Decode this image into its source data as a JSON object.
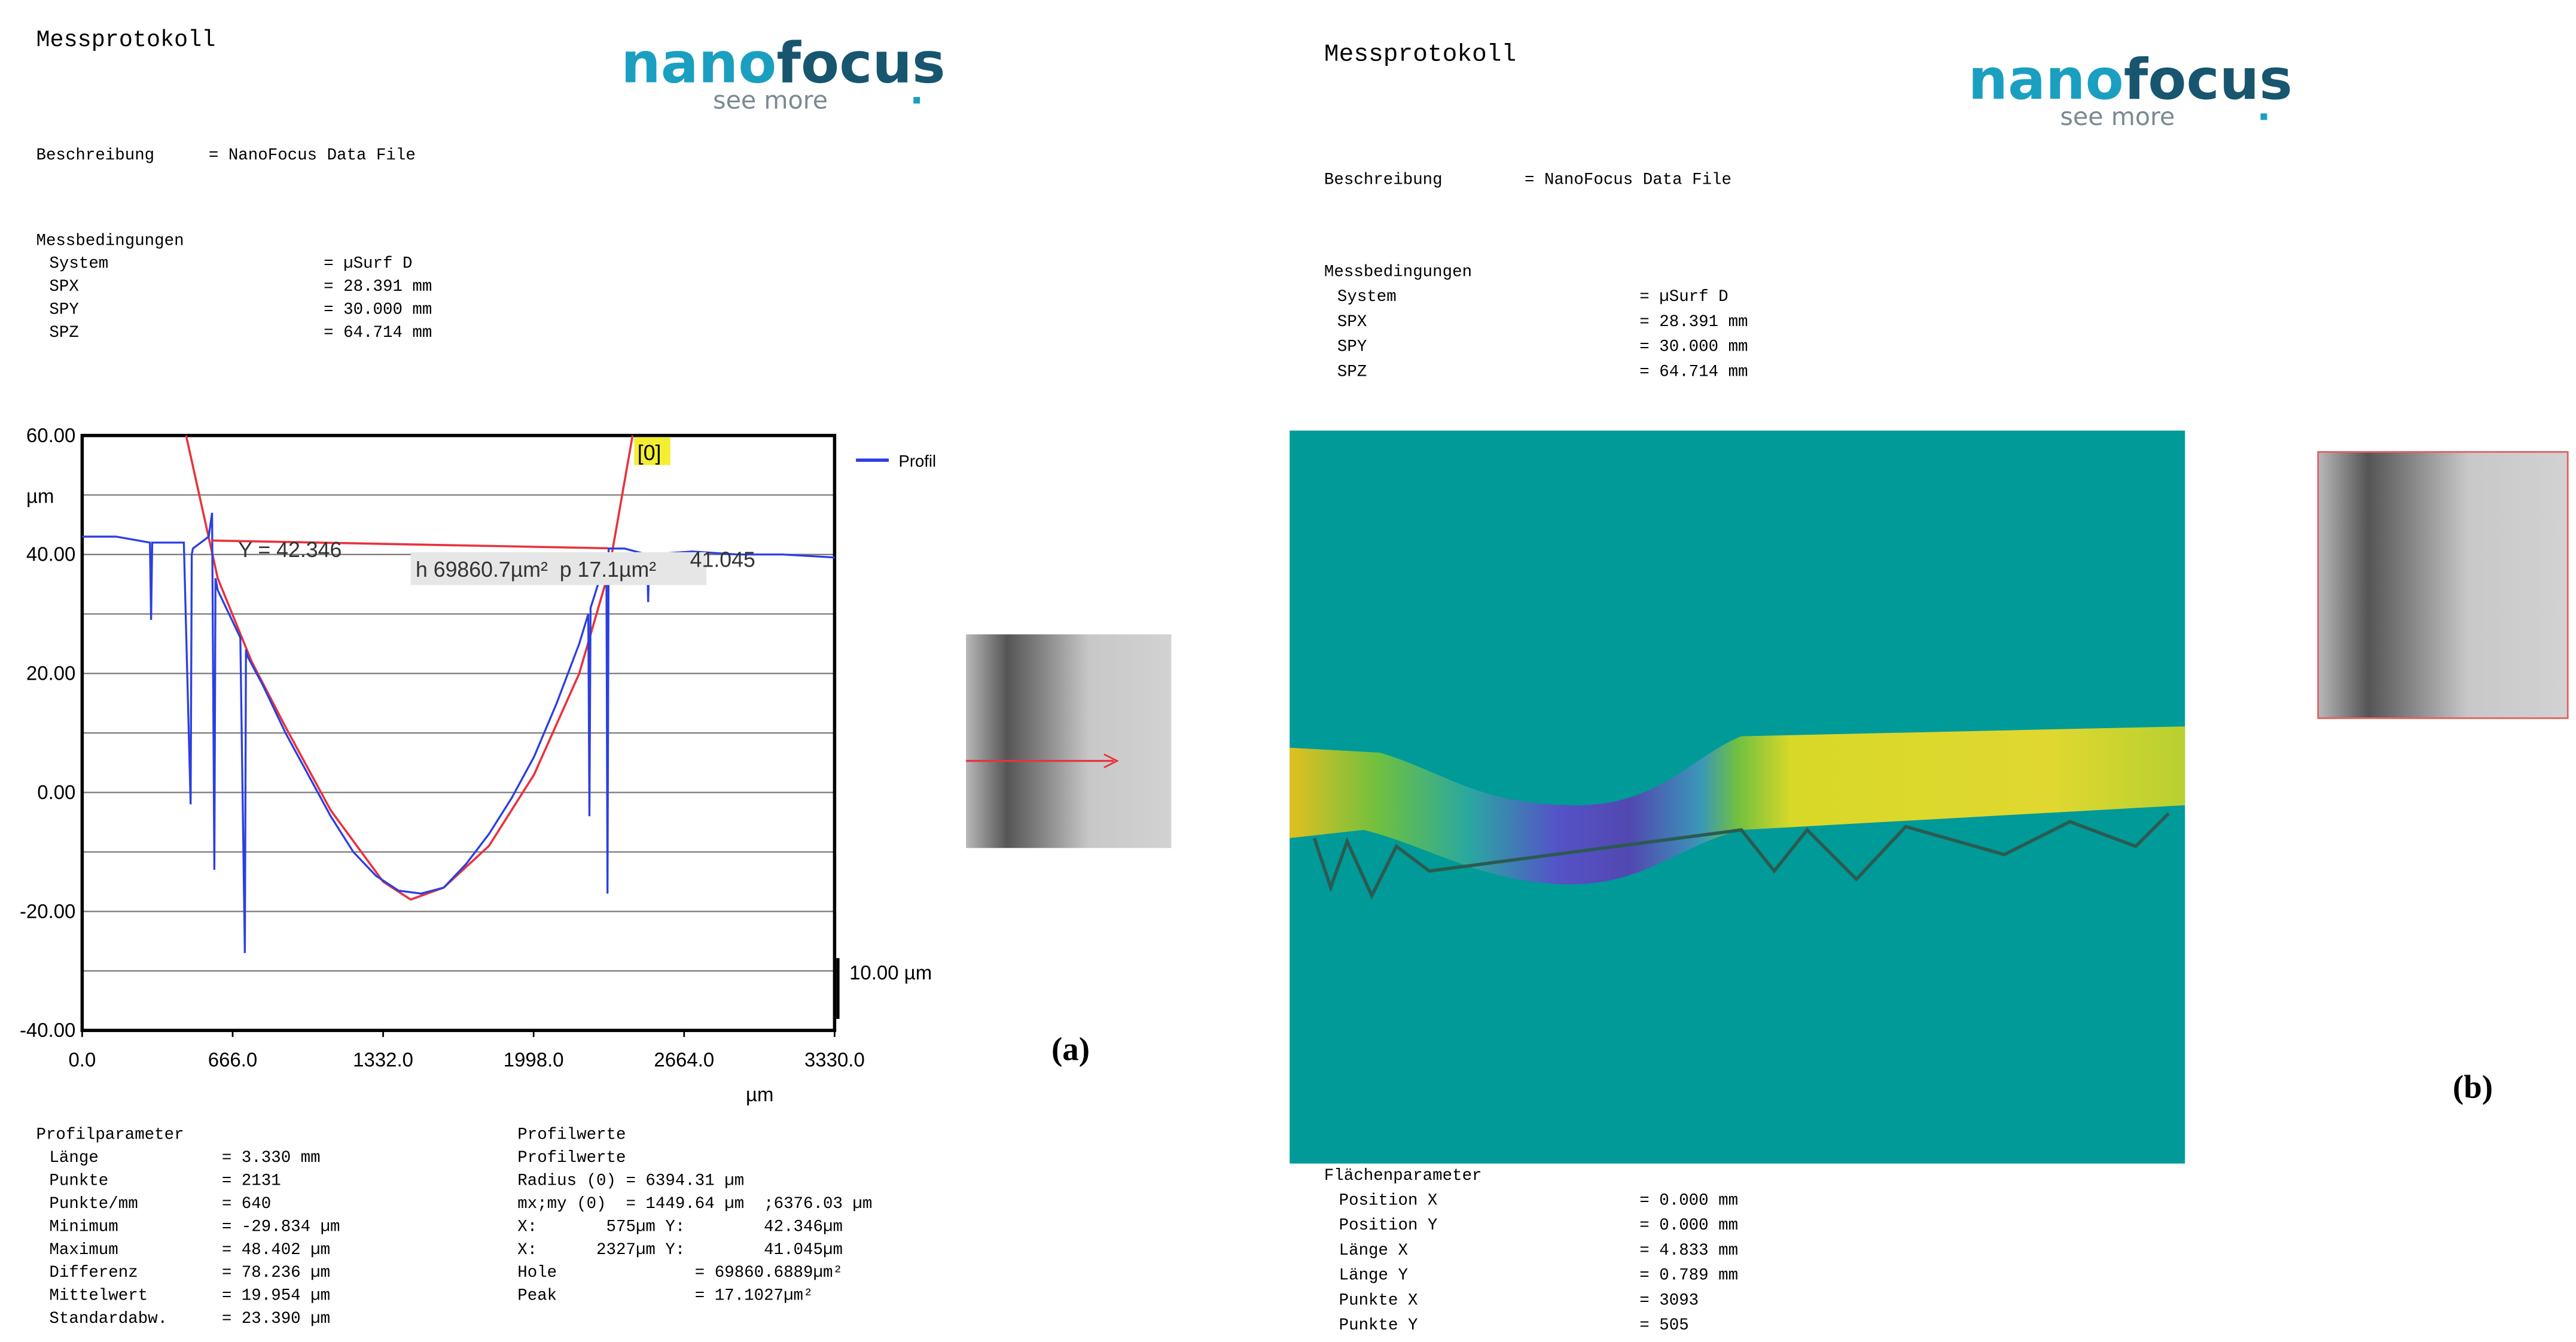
{
  "panel_a": {
    "title": "Messprotokoll",
    "logo": [
      "nano",
      "focus"
    ],
    "logo_tagline": "see more",
    "description": [
      "Beschreibung",
      "= NanoFocus Data File"
    ],
    "conditions_heading": "Messbedingungen",
    "conditions": [
      [
        "System",
        "= µSurf D"
      ],
      [
        "SPX",
        "= 28.391 mm"
      ],
      [
        "SPY",
        "= 30.000 mm"
      ],
      [
        "SPZ",
        "= 64.714 mm"
      ]
    ],
    "profile_parameters_heading": "Profilparameter",
    "profile_parameters": [
      [
        "Länge",
        "= 3.330 mm"
      ],
      [
        "Punkte",
        "= 2131"
      ],
      [
        "Punkte/mm",
        "= 640"
      ],
      [
        "Minimum",
        "= -29.834 µm"
      ],
      [
        "Maximum",
        "= 48.402 µm"
      ],
      [
        "Differenz",
        "= 78.236 µm"
      ],
      [
        "Mittelwert",
        "= 19.954 µm"
      ],
      [
        "Standardabw.",
        "= 23.390 µm"
      ]
    ],
    "profile_values": [
      "Profilwerte",
      "Profilwerte",
      "Radius (0) = 6394.31 µm",
      "mx;my (0)  = 1449.64 µm  ;6376.03 µm",
      "X:       575µm Y:        42.346µm",
      "X:      2327µm Y:        41.045µm",
      "Hole              = 69860.6889µm²",
      "Peak              = 17.1027µm²"
    ],
    "label": "(a)"
  },
  "chart_data": {
    "type": "line",
    "x": [
      0,
      150,
      300,
      305,
      310,
      450,
      480,
      485,
      490,
      560,
      575,
      585,
      590,
      600,
      650,
      700,
      720,
      725,
      730,
      800,
      900,
      1000,
      1100,
      1200,
      1300,
      1400,
      1500,
      1600,
      1700,
      1800,
      1900,
      2000,
      2100,
      2200,
      2240,
      2245,
      2250,
      2300,
      2320,
      2325,
      2330,
      2400,
      2500,
      2505,
      2510,
      2700,
      2900,
      3100,
      3330
    ],
    "series": [
      {
        "name": "Profil",
        "color": "#2b3fe0",
        "values": [
          43,
          43,
          42,
          29,
          42,
          42,
          -2,
          40,
          41,
          43,
          47,
          -13,
          36,
          34,
          30,
          26,
          -27,
          24,
          23,
          18,
          10,
          3,
          -4,
          -10,
          -14,
          -16.5,
          -17,
          -16,
          -12,
          -7,
          -1,
          6,
          15,
          25,
          30,
          -4,
          31,
          37,
          40,
          -17,
          41,
          41,
          40,
          32,
          40,
          40.5,
          40,
          40,
          39.5
        ]
      }
    ],
    "fit": {
      "color": "#e8323c",
      "x": [
        460,
        600,
        750,
        900,
        1100,
        1332,
        1454,
        1600,
        1800,
        2000,
        2200,
        2330,
        2436
      ],
      "y": [
        60,
        36,
        22,
        11,
        -3,
        -15,
        -18,
        -16,
        -9,
        3,
        20,
        37,
        60
      ]
    },
    "level": {
      "color": "#e8323c",
      "x": [
        575,
        2327
      ],
      "y": [
        42.346,
        41.045
      ]
    },
    "xlim": [
      0,
      3330
    ],
    "xticks": [
      {
        "value": 0,
        "label": "0.0"
      },
      {
        "value": 666,
        "label": "666.0"
      },
      {
        "value": 1332,
        "label": "1332.0"
      },
      {
        "value": 1998,
        "label": "1998.0"
      },
      {
        "value": 2664,
        "label": "2664.0"
      },
      {
        "value": 3330,
        "label": "3330.0"
      }
    ],
    "ylim": [
      -40,
      60
    ],
    "yticks": [
      {
        "value": -40,
        "label": "-40.00"
      },
      {
        "value": -20,
        "label": "-20.00"
      },
      {
        "value": 0,
        "label": "0.00"
      },
      {
        "value": 20,
        "label": "20.00"
      },
      {
        "value": 40,
        "label": "40.00"
      },
      {
        "value": 60,
        "label": "60.00"
      }
    ],
    "y_minor_ticks": [
      -30,
      -10,
      10,
      30,
      50
    ],
    "grid": true,
    "xlabel": "µm",
    "ylabel": "µm",
    "legend": "outside-right",
    "annotations": [
      "Y = 42.346",
      "h 69860.7µm²  p 17.1µm²",
      "41.045",
      "[0]"
    ],
    "scale_bar_label": "10.00 µm"
  },
  "panel_b": {
    "title": "Messprotokoll",
    "logo": [
      "nano",
      "focus"
    ],
    "logo_tagline": "see more",
    "description": [
      "Beschreibung",
      "= NanoFocus Data File"
    ],
    "conditions_heading": "Messbedingungen",
    "conditions": [
      [
        "System",
        "= µSurf D"
      ],
      [
        "SPX",
        "= 28.391 mm"
      ],
      [
        "SPY",
        "= 30.000 mm"
      ],
      [
        "SPZ",
        "= 64.714 mm"
      ]
    ],
    "area_parameters_heading": "Flächenparameter",
    "area_parameters": [
      [
        "Position X",
        "= 0.000 mm"
      ],
      [
        "Position Y",
        "= 0.000 mm"
      ],
      [
        "Länge X",
        "= 4.833 mm"
      ],
      [
        "Länge Y",
        "= 0.789 mm"
      ],
      [
        "Punkte X",
        "= 3093"
      ],
      [
        "Punkte Y",
        "= 505"
      ]
    ],
    "label": "(b)"
  }
}
